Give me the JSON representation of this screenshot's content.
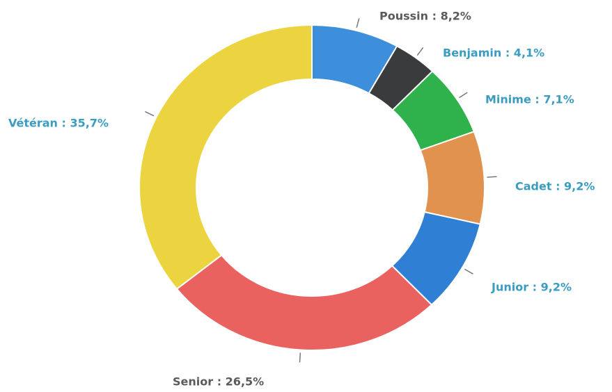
{
  "chart_data": {
    "type": "donut",
    "values": [
      8.2,
      4.1,
      7.1,
      9.2,
      9.2,
      26.5,
      35.7
    ],
    "value_labels": [
      "Poussin : 8,2%",
      "Benjamin : 4,1%",
      "Minime : 7,1%",
      "Cadet : 9,2%",
      "Junior : 9,2%",
      "Senior : 26,5%",
      "Vétéran : 35,7%"
    ],
    "colors": [
      "#3d8fdc",
      "#3a3b3c",
      "#2fb24c",
      "#e0924e",
      "#2f7fd4",
      "#e9625f",
      "#ecd440"
    ],
    "label_colors": [
      "#5a5a5a",
      "#3a9cc0",
      "#3a9cc0",
      "#3a9cc0",
      "#3a9cc0",
      "#5a5a5a",
      "#3a9cc0"
    ]
  }
}
